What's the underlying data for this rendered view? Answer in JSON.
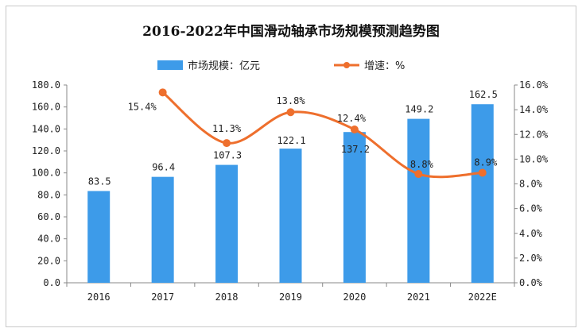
{
  "chart_data": {
    "type": "bar+line",
    "title": "2016-2022年中国滑动轴承市场规模预测趋势图",
    "categories": [
      "2016",
      "2017",
      "2018",
      "2019",
      "2020",
      "2021",
      "2022E"
    ],
    "series": [
      {
        "name": "市场规模：亿元",
        "type": "bar",
        "axis": "left",
        "color": "#3d9be9",
        "values": [
          83.5,
          96.4,
          107.3,
          122.1,
          137.2,
          149.2,
          162.5
        ],
        "labels": [
          "83.5",
          "96.4",
          "107.3",
          "122.1",
          "137.2",
          "149.2",
          "162.5"
        ]
      },
      {
        "name": "增速：%",
        "type": "line",
        "axis": "right",
        "color": "#ee6f2d",
        "values": [
          null,
          15.4,
          11.3,
          13.8,
          12.4,
          8.8,
          8.9
        ],
        "labels": [
          "",
          "15.4%",
          "11.3%",
          "13.8%",
          "12.4%",
          "8.8%",
          "8.9%"
        ]
      }
    ],
    "y_left": {
      "range": [
        0,
        180
      ],
      "ticks": [
        "0.0",
        "20.0",
        "40.0",
        "60.0",
        "80.0",
        "100.0",
        "120.0",
        "140.0",
        "160.0",
        "180.0"
      ]
    },
    "y_right": {
      "range": [
        0,
        16
      ],
      "ticks": [
        "0.0%",
        "2.0%",
        "4.0%",
        "6.0%",
        "8.0%",
        "10.0%",
        "12.0%",
        "14.0%",
        "16.0%"
      ]
    },
    "legend": {
      "position": "top",
      "items": [
        "市场规模：亿元",
        "增速：%"
      ]
    },
    "grid": false
  }
}
